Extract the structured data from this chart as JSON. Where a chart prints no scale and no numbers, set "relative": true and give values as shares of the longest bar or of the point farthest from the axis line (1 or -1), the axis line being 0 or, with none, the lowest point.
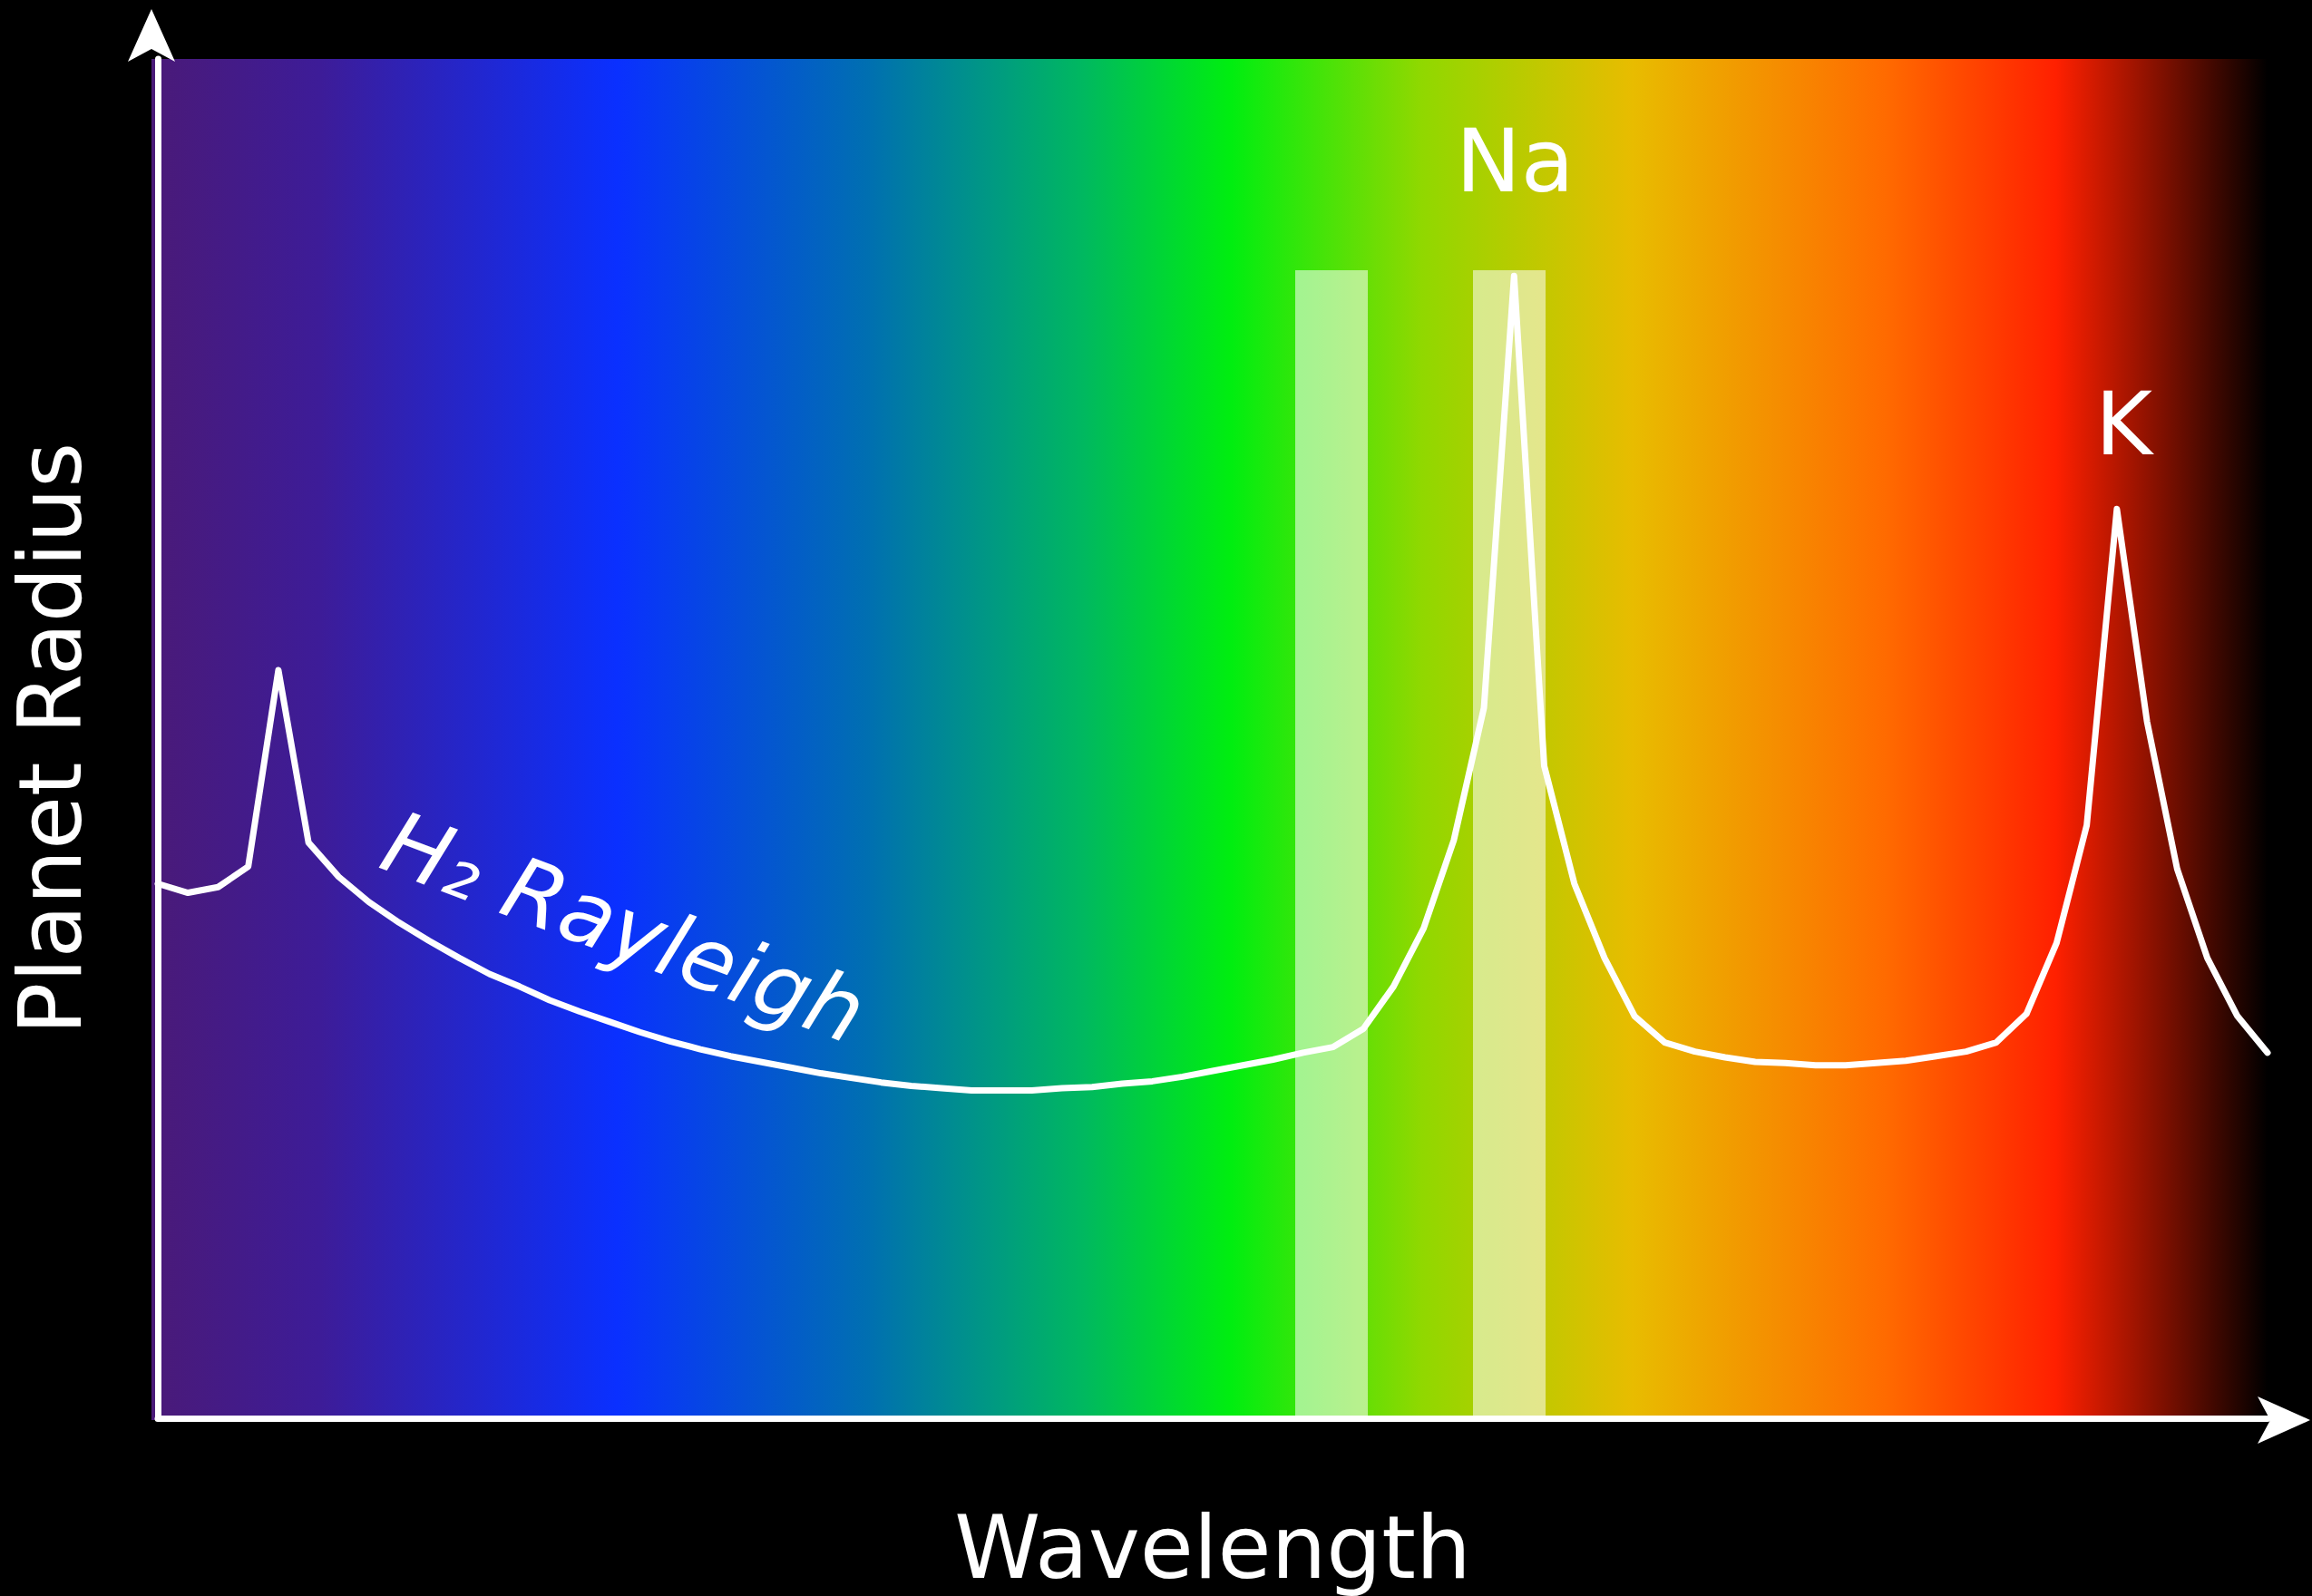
{
  "chart_data": {
    "type": "line",
    "relative": true,
    "xlabel": "Wavelength",
    "ylabel": "Planet Radius",
    "categories": [
      null,
      null,
      null,
      null,
      null,
      null,
      null,
      null,
      null,
      null,
      null,
      null,
      null,
      null,
      null,
      null,
      null,
      null,
      null,
      null,
      null,
      null,
      null,
      null,
      null,
      null,
      null,
      null,
      null,
      null,
      null,
      null,
      null,
      null,
      null,
      null,
      null,
      null,
      null,
      null,
      null,
      null,
      null,
      null,
      null,
      null,
      null,
      null,
      null,
      null,
      null,
      null,
      null,
      null,
      null,
      null,
      null,
      null,
      null,
      null,
      null,
      null,
      null,
      null,
      null,
      null,
      null,
      null,
      null,
      null,
      null
    ],
    "series": [
      {
        "color": "#ffffff",
        "values": [
          0.468,
          0.46,
          0.465,
          0.483,
          0.655,
          0.504,
          0.474,
          0.452,
          0.434,
          0.418,
          0.403,
          0.389,
          0.378,
          0.366,
          0.356,
          0.347,
          0.338,
          0.33,
          0.323,
          0.317,
          0.312,
          0.307,
          0.302,
          0.298,
          0.294,
          0.291,
          0.289,
          0.287,
          0.287,
          0.287,
          0.289,
          0.29,
          0.293,
          0.295,
          0.299,
          0.304,
          0.309,
          0.314,
          0.32,
          0.325,
          0.341,
          0.378,
          0.429,
          0.506,
          0.622,
          1,
          0.571,
          0.468,
          0.403,
          0.352,
          0.329,
          0.321,
          0.316,
          0.312,
          0.311,
          0.309,
          0.309,
          0.311,
          0.313,
          0.317,
          0.321,
          0.329,
          0.354,
          0.416,
          0.519,
          0.796,
          0.61,
          0.481,
          0.403,
          0.352,
          0.32
        ]
      }
    ],
    "marker": "none",
    "line_style": "solid",
    "grid": false,
    "annotations": [
      "Na",
      "K",
      "H₂ Rayleigh"
    ]
  }
}
